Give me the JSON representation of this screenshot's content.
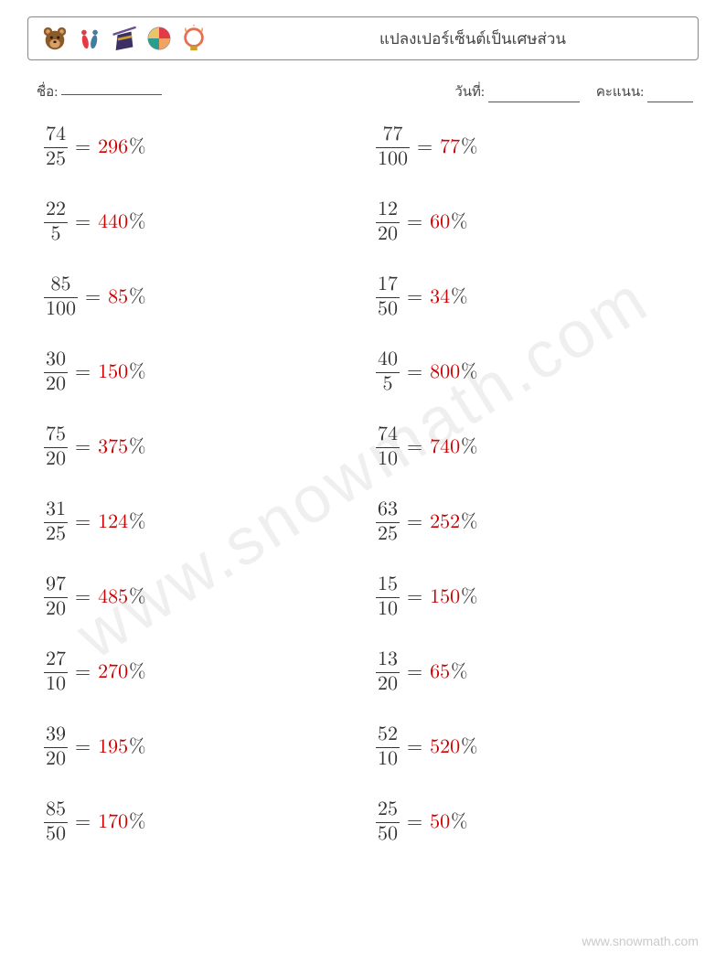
{
  "header": {
    "title": "แปลงเปอร์เซ็นต์เป็นเศษส่วน",
    "icons": [
      "bear-icon",
      "pins-icon",
      "magic-hat-icon",
      "beach-ball-icon",
      "fire-ring-icon"
    ]
  },
  "meta": {
    "name_label": "ชื่อ:",
    "date_label": "วันที่:",
    "score_label": "คะแนน:"
  },
  "colors": {
    "text": "#333333",
    "answer": "#cc0000",
    "border": "#888888",
    "watermark": "rgba(120,120,120,0.12)",
    "footer": "rgba(100,100,100,0.35)",
    "background": "#ffffff"
  },
  "typography": {
    "title_fontsize": 17,
    "meta_fontsize": 15,
    "problem_fontsize": 22,
    "watermark_fontsize": 72,
    "footer_fontsize": 14
  },
  "layout": {
    "columns": 2,
    "rows": 10,
    "row_gap": 28,
    "problem_height": 54
  },
  "problems": [
    {
      "numerator": "74",
      "denominator": "25",
      "answer": "296"
    },
    {
      "numerator": "77",
      "denominator": "100",
      "answer": "77"
    },
    {
      "numerator": "22",
      "denominator": "5",
      "answer": "440"
    },
    {
      "numerator": "12",
      "denominator": "20",
      "answer": "60"
    },
    {
      "numerator": "85",
      "denominator": "100",
      "answer": "85"
    },
    {
      "numerator": "17",
      "denominator": "50",
      "answer": "34"
    },
    {
      "numerator": "30",
      "denominator": "20",
      "answer": "150"
    },
    {
      "numerator": "40",
      "denominator": "5",
      "answer": "800"
    },
    {
      "numerator": "75",
      "denominator": "20",
      "answer": "375"
    },
    {
      "numerator": "74",
      "denominator": "10",
      "answer": "740"
    },
    {
      "numerator": "31",
      "denominator": "25",
      "answer": "124"
    },
    {
      "numerator": "63",
      "denominator": "25",
      "answer": "252"
    },
    {
      "numerator": "97",
      "denominator": "20",
      "answer": "485"
    },
    {
      "numerator": "15",
      "denominator": "10",
      "answer": "150"
    },
    {
      "numerator": "27",
      "denominator": "10",
      "answer": "270"
    },
    {
      "numerator": "13",
      "denominator": "20",
      "answer": "65"
    },
    {
      "numerator": "39",
      "denominator": "20",
      "answer": "195"
    },
    {
      "numerator": "52",
      "denominator": "10",
      "answer": "520"
    },
    {
      "numerator": "85",
      "denominator": "50",
      "answer": "170"
    },
    {
      "numerator": "25",
      "denominator": "50",
      "answer": "50"
    }
  ],
  "symbols": {
    "equals": "=",
    "percent": "%"
  },
  "watermark": "www.snowmath.com",
  "footer": "www.snowmath.com"
}
